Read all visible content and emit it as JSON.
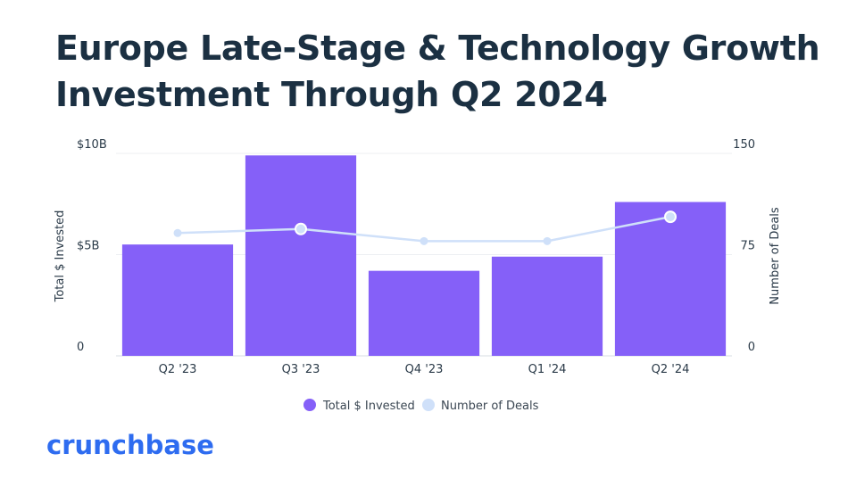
{
  "title": "Europe Late-Stage & Technology Growth Investment Through Q2 2024",
  "brand": "crunchbase",
  "colors": {
    "bar": "#8560f8",
    "line": "#cfe0f9",
    "marker": "#cfe0f9",
    "marker_stroke": "#ffffff",
    "title": "#1b3042",
    "brand": "#2e6cf0"
  },
  "chart_data": {
    "type": "bar",
    "categories": [
      "Q2 '23",
      "Q3 '23",
      "Q4 '23",
      "Q1 '24",
      "Q2 '24"
    ],
    "series": [
      {
        "name": "Total $ Invested",
        "type": "bar",
        "axis": "left",
        "values": [
          5.5,
          9.9,
          4.2,
          4.9,
          7.6
        ]
      },
      {
        "name": "Number of Deals",
        "type": "line",
        "axis": "right",
        "values": [
          91,
          94,
          85,
          85,
          103
        ]
      }
    ],
    "ylabel": "Total $ Invested",
    "y2label": "Number of Deals",
    "ylim": [
      0,
      10
    ],
    "y2lim": [
      0,
      150
    ],
    "yticks": [
      {
        "value": 0,
        "label": "0"
      },
      {
        "value": 5,
        "label": "$5B"
      },
      {
        "value": 10,
        "label": "$10B"
      }
    ],
    "y2ticks": [
      {
        "value": 0,
        "label": "0"
      },
      {
        "value": 75,
        "label": "75"
      },
      {
        "value": 150,
        "label": "150"
      }
    ],
    "highlighted_points": [
      1,
      4
    ],
    "grid": true,
    "legend": "bottom-center"
  }
}
